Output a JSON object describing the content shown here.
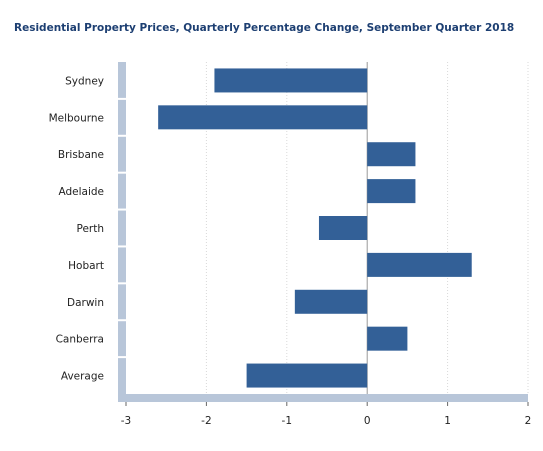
{
  "chart_data": {
    "type": "bar",
    "orientation": "horizontal",
    "title": "Residential Property Prices, Quarterly Percentage Change, September Quarter 2018",
    "xlabel": "",
    "ylabel": "",
    "categories": [
      "Sydney",
      "Melbourne",
      "Brisbane",
      "Adelaide",
      "Perth",
      "Hobart",
      "Darwin",
      "Canberra",
      "Average"
    ],
    "values": [
      -1.9,
      -2.6,
      0.6,
      0.6,
      -0.6,
      1.3,
      -0.9,
      0.5,
      -1.5
    ],
    "xlim": [
      -3,
      2
    ],
    "xticks": [
      "-3",
      "-2",
      "-1",
      "0",
      "1",
      "2"
    ],
    "grid": true,
    "legend": "none",
    "colors": {
      "bar": "#336097",
      "title": "#1d3f72",
      "axis_band": "#b8c6d9",
      "grid": "#d9d9d9",
      "zero_line": "#9a9a9a"
    }
  }
}
